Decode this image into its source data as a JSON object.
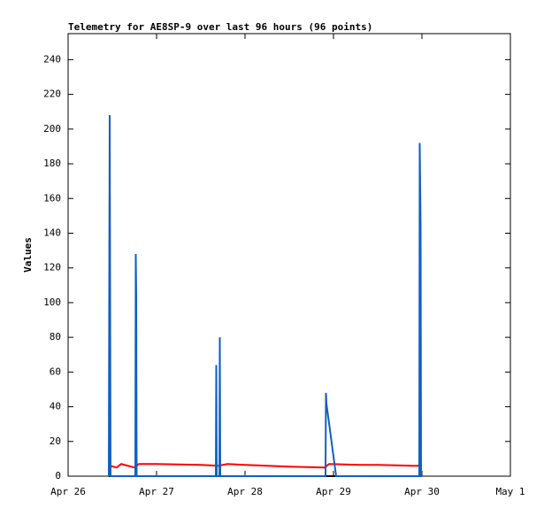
{
  "chart_data": {
    "type": "line",
    "title": "Telemetry for AE8SP-9 over last 96 hours (96 points)",
    "y_label": "Values",
    "xlim": [
      0,
      5
    ],
    "xticks": [
      {
        "value": 0,
        "label": "Apr 26"
      },
      {
        "value": 1,
        "label": "Apr 27"
      },
      {
        "value": 2,
        "label": "Apr 28"
      },
      {
        "value": 3,
        "label": "Apr 29"
      },
      {
        "value": 4,
        "label": "Apr 30"
      },
      {
        "value": 5,
        "label": "May 1"
      }
    ],
    "ylim": [
      0,
      255
    ],
    "yticks": [
      0,
      20,
      40,
      60,
      80,
      100,
      120,
      140,
      160,
      180,
      200,
      220,
      240
    ],
    "series": [
      {
        "color": "#000000",
        "x": [
          0.46,
          4.0
        ],
        "values": [
          0,
          0
        ]
      },
      {
        "color": "#ff0000",
        "x": [
          0.47,
          0.55,
          0.6,
          0.75,
          0.8,
          1.0,
          1.5,
          1.7,
          1.8,
          2.0,
          2.5,
          2.9,
          2.95,
          3.3,
          3.5,
          3.9,
          4.0
        ],
        "values": [
          6,
          5,
          7,
          5,
          7,
          7,
          6.5,
          6,
          7,
          6.5,
          5.5,
          5,
          7,
          6.5,
          6.5,
          6,
          6
        ]
      },
      {
        "color": "#1060c0",
        "x": [
          0.46,
          0.47,
          0.48,
          0.76,
          0.765,
          0.77,
          0.775,
          1.67,
          1.675,
          1.68,
          1.71,
          1.715,
          1.72,
          2.91,
          2.915,
          2.92,
          3.03,
          3.97,
          3.975,
          3.985,
          3.99,
          4.0
        ],
        "values": [
          0,
          208,
          0,
          0,
          128,
          104,
          0,
          0,
          64,
          0,
          0,
          80,
          0,
          0,
          48,
          42,
          0,
          0,
          192,
          144,
          0,
          0
        ]
      }
    ]
  }
}
